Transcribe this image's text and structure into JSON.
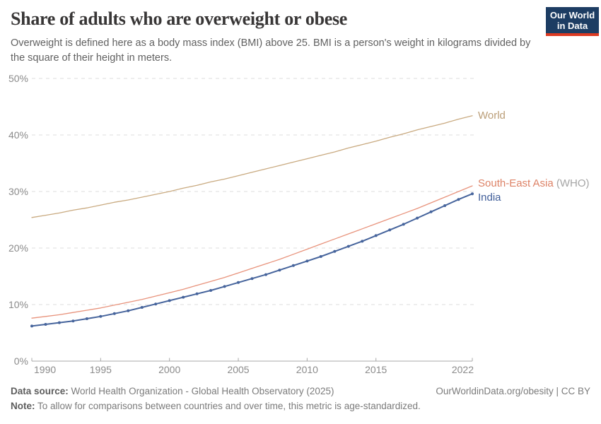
{
  "header": {
    "title": "Share of adults who are overweight or obese",
    "subtitle": "Overweight is defined here as a body mass index (BMI) above 25. BMI is a person's weight in kilograms divided by the square of their height in meters.",
    "logo": {
      "line1": "Our World",
      "line2": "in Data",
      "bg_color": "#1d3d63",
      "accent_color": "#dc3a22"
    }
  },
  "chart_data": {
    "type": "line",
    "title": "Share of adults who are overweight or obese",
    "xlabel": "",
    "ylabel": "",
    "x": [
      1990,
      1991,
      1992,
      1993,
      1994,
      1995,
      1996,
      1997,
      1998,
      1999,
      2000,
      2001,
      2002,
      2003,
      2004,
      2005,
      2006,
      2007,
      2008,
      2009,
      2010,
      2011,
      2012,
      2013,
      2014,
      2015,
      2016,
      2017,
      2018,
      2019,
      2020,
      2021,
      2022
    ],
    "xlim": [
      1990,
      2022
    ],
    "ylim": [
      0,
      50
    ],
    "yticks": [
      0,
      10,
      20,
      30,
      40,
      50
    ],
    "ytick_suffix": "%",
    "xticks": [
      1990,
      1995,
      2000,
      2005,
      2010,
      2015,
      2022
    ],
    "grid": "horizontal-dashed",
    "legend_position": "end-of-line",
    "axis_color": "#a8a8a8",
    "grid_color": "#dcdcdc",
    "tick_label_color": "#8b8b8b",
    "series": [
      {
        "name": "World",
        "color": "#c9aa80",
        "label_color": "#bb9e78",
        "width": 1.3,
        "markers": false,
        "label_dy": 4,
        "values": [
          25.4,
          25.8,
          26.2,
          26.7,
          27.1,
          27.6,
          28.1,
          28.5,
          29.0,
          29.5,
          30.0,
          30.6,
          31.1,
          31.7,
          32.2,
          32.8,
          33.4,
          34.0,
          34.6,
          35.2,
          35.8,
          36.4,
          37.0,
          37.7,
          38.3,
          38.9,
          39.6,
          40.2,
          40.9,
          41.5,
          42.1,
          42.8,
          43.4
        ]
      },
      {
        "name": "South-East Asia",
        "name_secondary": " (WHO)",
        "color": "#e8937c",
        "label_color": "#dd8266",
        "secondary_color": "#a5a5a5",
        "width": 1.3,
        "markers": false,
        "label_dy": 1,
        "values": [
          7.6,
          7.9,
          8.2,
          8.6,
          9.0,
          9.4,
          9.9,
          10.4,
          10.9,
          11.5,
          12.1,
          12.7,
          13.4,
          14.1,
          14.8,
          15.6,
          16.4,
          17.2,
          18.0,
          18.9,
          19.8,
          20.7,
          21.6,
          22.5,
          23.4,
          24.3,
          25.2,
          26.1,
          27.0,
          28.0,
          29.0,
          30.0,
          31.0
        ]
      },
      {
        "name": "India",
        "color": "#46649c",
        "label_color": "#3f5d99",
        "width": 2,
        "markers": true,
        "marker_radius": 2,
        "label_dy": 10,
        "values": [
          6.2,
          6.5,
          6.8,
          7.1,
          7.5,
          7.9,
          8.4,
          8.9,
          9.5,
          10.1,
          10.7,
          11.3,
          11.9,
          12.5,
          13.2,
          13.9,
          14.6,
          15.3,
          16.1,
          16.9,
          17.7,
          18.5,
          19.4,
          20.3,
          21.2,
          22.2,
          23.2,
          24.2,
          25.3,
          26.4,
          27.5,
          28.6,
          29.6
        ]
      }
    ]
  },
  "footer": {
    "data_source_label": "Data source:",
    "data_source_text": " World Health Organization - Global Health Observatory (2025)",
    "attribution": "OurWorldinData.org/obesity | CC BY",
    "note_label": "Note:",
    "note_text": " To allow for comparisons between countries and over time, this metric is age-standardized."
  }
}
